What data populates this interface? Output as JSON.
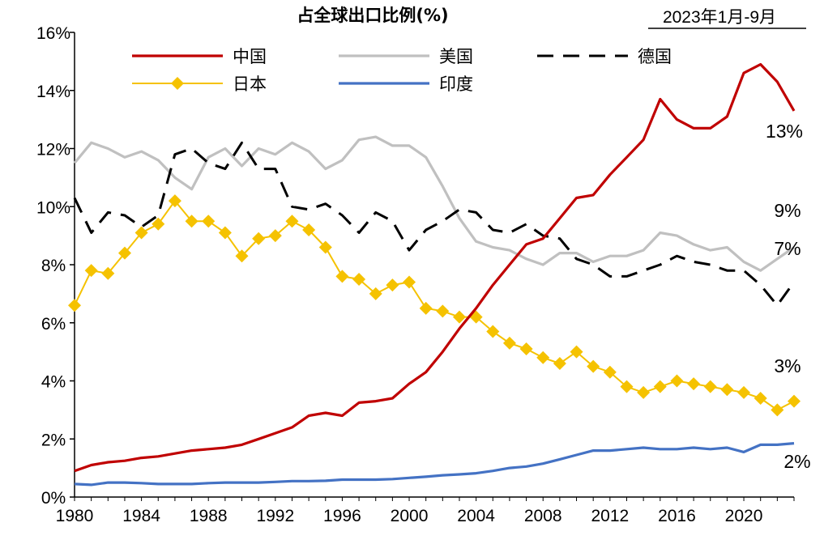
{
  "chart_data": {
    "type": "line",
    "title": "占全球出口比例(%)",
    "subtitle": "2023年1月-9月",
    "xlim": [
      1980,
      2023
    ],
    "ylim": [
      0,
      16
    ],
    "y_ticks": [
      "0%",
      "2%",
      "4%",
      "6%",
      "8%",
      "10%",
      "12%",
      "14%",
      "16%"
    ],
    "x_ticks": [
      "1980",
      "1984",
      "1988",
      "1992",
      "1996",
      "2000",
      "2004",
      "2008",
      "2012",
      "2016",
      "2020"
    ],
    "grid": false,
    "legend_position": "top",
    "x": [
      1980,
      1981,
      1982,
      1983,
      1984,
      1985,
      1986,
      1987,
      1988,
      1989,
      1990,
      1991,
      1992,
      1993,
      1994,
      1995,
      1996,
      1997,
      1998,
      1999,
      2000,
      2001,
      2002,
      2003,
      2004,
      2005,
      2006,
      2007,
      2008,
      2009,
      2010,
      2011,
      2012,
      2013,
      2014,
      2015,
      2016,
      2017,
      2018,
      2019,
      2020,
      2021,
      2022,
      2023
    ],
    "series": [
      {
        "name": "中国",
        "color": "#C00000",
        "style": "solid",
        "values": [
          0.9,
          1.1,
          1.2,
          1.25,
          1.35,
          1.4,
          1.5,
          1.6,
          1.65,
          1.7,
          1.8,
          2.0,
          2.2,
          2.4,
          2.8,
          2.9,
          2.8,
          3.25,
          3.3,
          3.4,
          3.9,
          4.3,
          5.0,
          5.8,
          6.5,
          7.3,
          8.0,
          8.7,
          8.9,
          9.6,
          10.3,
          10.4,
          11.1,
          11.7,
          12.3,
          13.7,
          13.0,
          12.7,
          12.7,
          13.1,
          14.6,
          14.9,
          14.3,
          13.3
        ]
      },
      {
        "name": "美国",
        "color": "#C0C0C0",
        "style": "solid",
        "values": [
          11.5,
          12.2,
          12.0,
          11.7,
          11.9,
          11.6,
          11.0,
          10.6,
          11.7,
          12.0,
          11.4,
          12.0,
          11.8,
          12.2,
          11.9,
          11.3,
          11.6,
          12.3,
          12.4,
          12.1,
          12.1,
          11.7,
          10.7,
          9.6,
          8.8,
          8.6,
          8.5,
          8.2,
          8.0,
          8.4,
          8.4,
          8.1,
          8.3,
          8.3,
          8.5,
          9.1,
          9.0,
          8.7,
          8.5,
          8.6,
          8.1,
          7.8,
          8.2,
          8.6
        ]
      },
      {
        "name": "德国",
        "color": "#000000",
        "style": "dashed",
        "values": [
          10.3,
          9.1,
          9.8,
          9.7,
          9.3,
          9.7,
          11.8,
          12.0,
          11.5,
          11.3,
          12.2,
          11.3,
          11.3,
          10.0,
          9.9,
          10.1,
          9.7,
          9.1,
          9.8,
          9.5,
          8.5,
          9.2,
          9.5,
          9.9,
          9.8,
          9.2,
          9.1,
          9.4,
          9.0,
          8.9,
          8.2,
          8.0,
          7.6,
          7.6,
          7.8,
          8.0,
          8.3,
          8.1,
          8.0,
          7.8,
          7.8,
          7.3,
          6.6,
          7.4
        ]
      },
      {
        "name": "日本",
        "color": "#F5C200",
        "style": "diamond-markers",
        "values": [
          6.6,
          7.8,
          7.7,
          8.4,
          9.1,
          9.4,
          10.2,
          9.5,
          9.5,
          9.1,
          8.3,
          8.9,
          9.0,
          9.5,
          9.2,
          8.6,
          7.6,
          7.5,
          7.0,
          7.3,
          7.4,
          6.5,
          6.4,
          6.2,
          6.2,
          5.7,
          5.3,
          5.1,
          4.8,
          4.6,
          5.0,
          4.5,
          4.3,
          3.8,
          3.6,
          3.8,
          4.0,
          3.9,
          3.8,
          3.7,
          3.6,
          3.4,
          3.0,
          3.3
        ]
      },
      {
        "name": "印度",
        "color": "#4472C4",
        "style": "solid",
        "values": [
          0.45,
          0.42,
          0.5,
          0.5,
          0.48,
          0.45,
          0.45,
          0.45,
          0.48,
          0.5,
          0.5,
          0.5,
          0.52,
          0.55,
          0.55,
          0.56,
          0.6,
          0.6,
          0.6,
          0.62,
          0.66,
          0.7,
          0.75,
          0.78,
          0.82,
          0.9,
          1.0,
          1.05,
          1.15,
          1.3,
          1.45,
          1.6,
          1.6,
          1.65,
          1.7,
          1.65,
          1.65,
          1.7,
          1.65,
          1.7,
          1.55,
          1.8,
          1.8,
          1.85
        ]
      }
    ],
    "end_labels": [
      "13%",
      "9%",
      "7%",
      "3%",
      "2%"
    ]
  }
}
